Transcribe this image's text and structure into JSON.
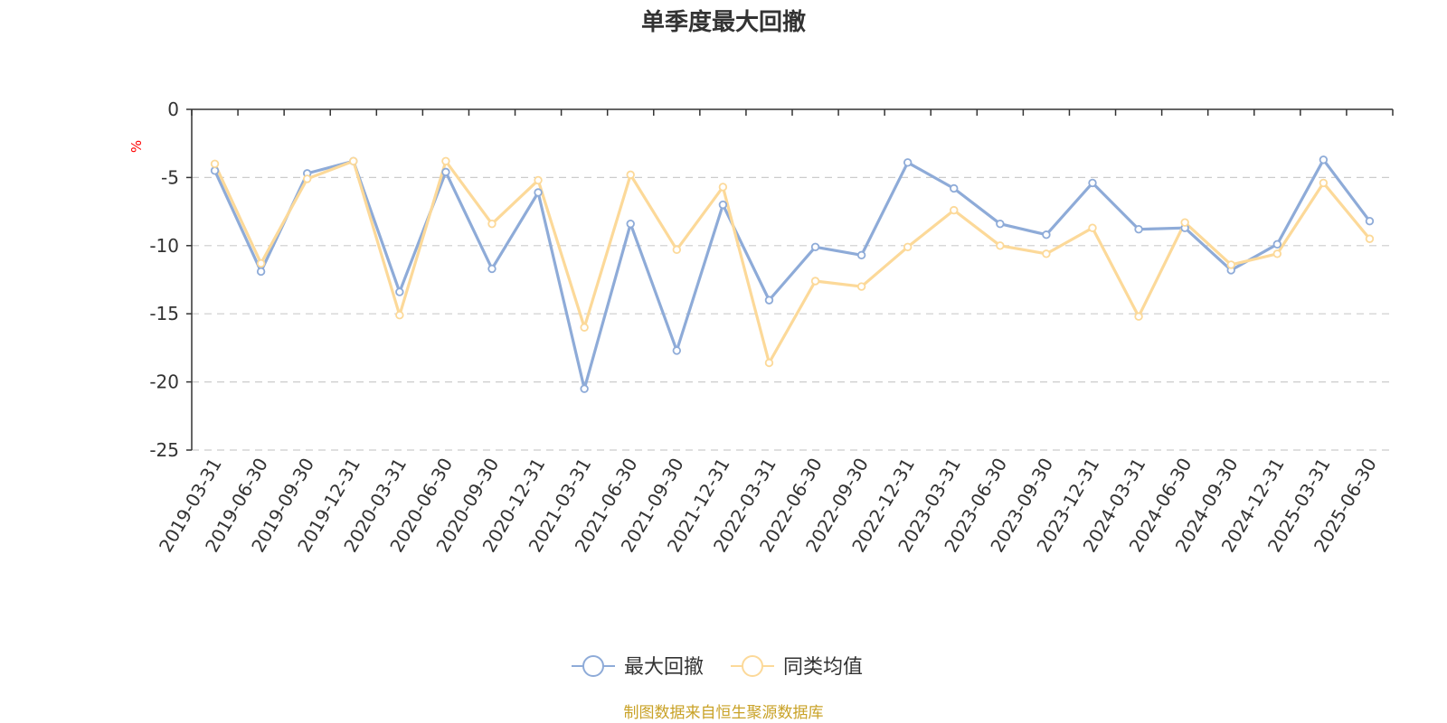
{
  "chart_data": {
    "type": "line",
    "title": "单季度最大回撤",
    "ylabel": "%",
    "ylim": [
      -25,
      0
    ],
    "yticks": [
      "0",
      "-5",
      "-10",
      "-15",
      "-20",
      "-25"
    ],
    "grid": true,
    "legend_position": "bottom-center",
    "categories": [
      "2019-03-31",
      "2019-06-30",
      "2019-09-30",
      "2019-12-31",
      "2020-03-31",
      "2020-06-30",
      "2020-09-30",
      "2020-12-31",
      "2021-03-31",
      "2021-06-30",
      "2021-09-30",
      "2021-12-31",
      "2022-03-31",
      "2022-06-30",
      "2022-09-30",
      "2022-12-31",
      "2023-03-31",
      "2023-06-30",
      "2023-09-30",
      "2023-12-31",
      "2024-03-31",
      "2024-06-30",
      "2024-09-30",
      "2024-12-31",
      "2025-03-31",
      "2025-06-30"
    ],
    "series": [
      {
        "name": "最大回撤",
        "color": "#8eabd8",
        "values": [
          -4.5,
          -11.9,
          -4.7,
          -3.8,
          -13.4,
          -4.6,
          -11.7,
          -6.1,
          -20.5,
          -8.4,
          -17.7,
          -7.0,
          -14.0,
          -10.1,
          -10.7,
          -3.9,
          -5.8,
          -8.4,
          -9.2,
          -5.4,
          -8.8,
          -8.7,
          -11.8,
          -9.9,
          -3.7,
          -8.2
        ]
      },
      {
        "name": "同类均值",
        "color": "#fcd999",
        "values": [
          -4.0,
          -11.3,
          -5.1,
          -3.8,
          -15.1,
          -3.8,
          -8.4,
          -5.2,
          -16.0,
          -4.8,
          -10.3,
          -5.7,
          -18.6,
          -12.6,
          -13.0,
          -10.1,
          -7.4,
          -10.0,
          -10.6,
          -8.7,
          -15.2,
          -8.3,
          -11.4,
          -10.6,
          -5.4,
          -9.5
        ]
      }
    ]
  },
  "source_note": "制图数据来自恒生聚源数据库",
  "colors": {
    "axis": "#333333",
    "grid": "#cccccc",
    "unit": "#ff0000",
    "source": "#c9a227"
  }
}
